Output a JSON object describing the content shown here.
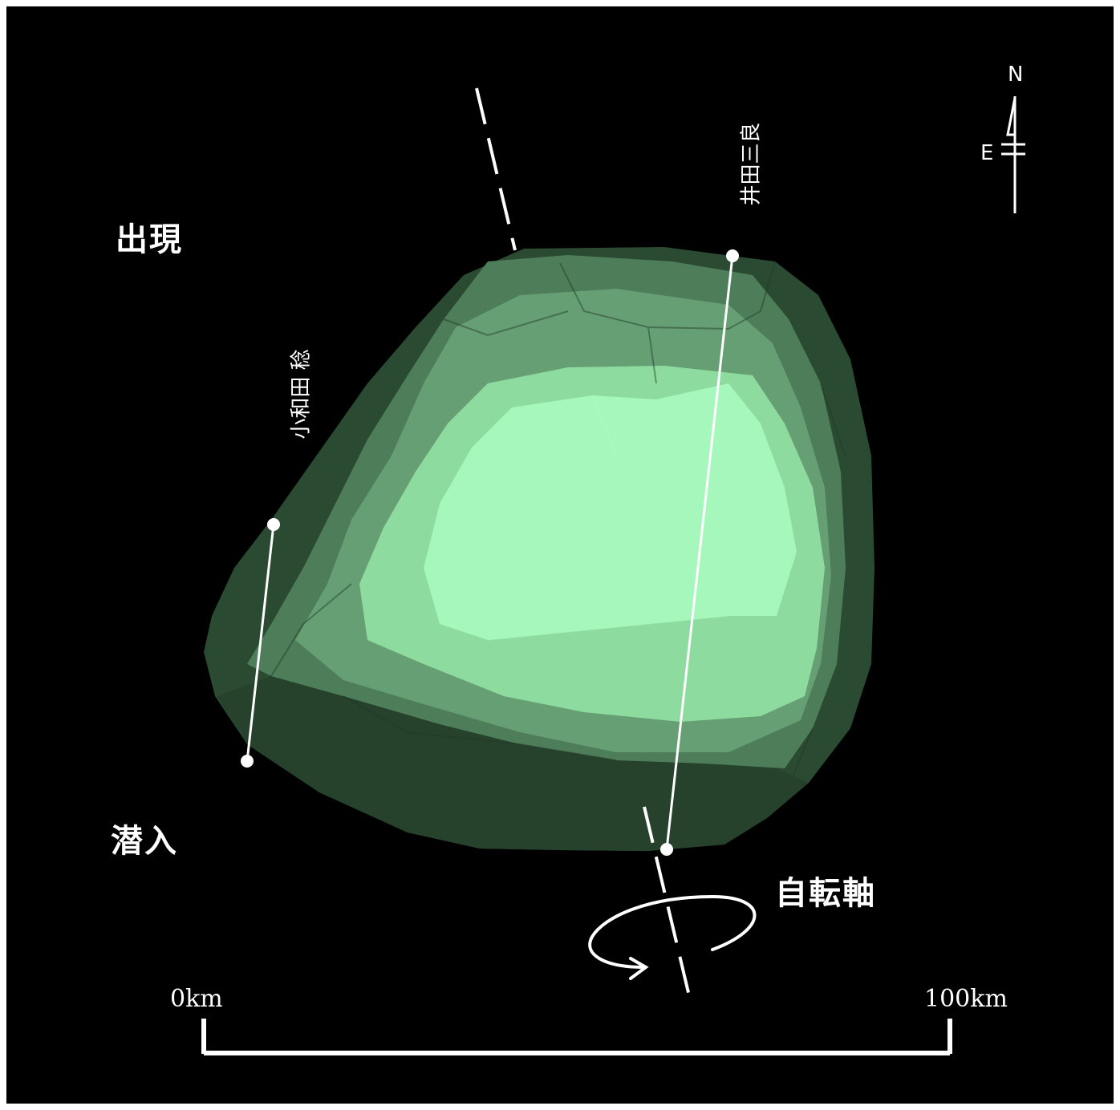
{
  "labels": {
    "emersion": "出現",
    "immersion": "潜入",
    "rotation_axis": "自転軸"
  },
  "observers": [
    {
      "name": "小和田 稔"
    },
    {
      "name": "井田三良"
    }
  ],
  "compass": {
    "north": "N",
    "east": "E"
  },
  "scale_bar": {
    "start": "0km",
    "end": "100km"
  },
  "colors": {
    "background": "#000000",
    "body_dark": "#2b4a32",
    "body_mid": "#5f9a6e",
    "body_light": "#a6f7bb",
    "lines": "#ffffff"
  }
}
